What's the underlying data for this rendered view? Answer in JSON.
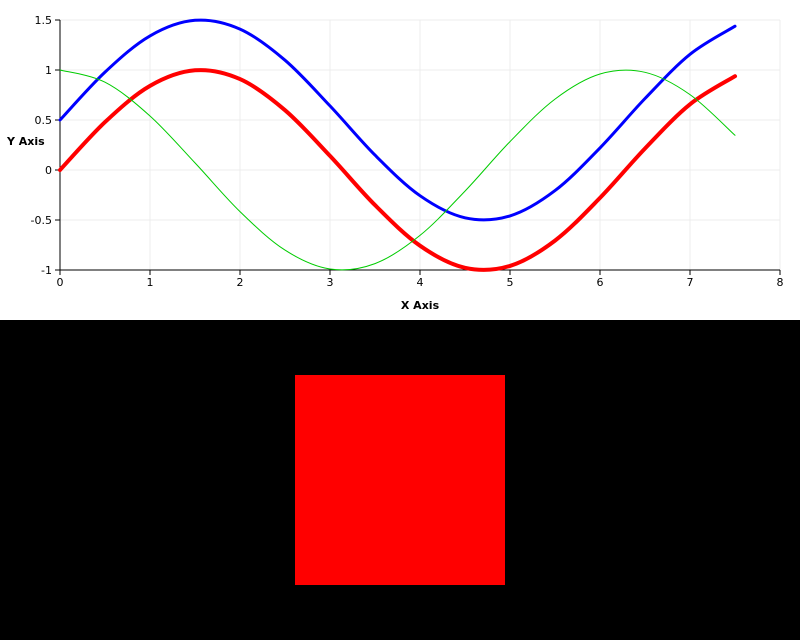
{
  "chart_data": {
    "type": "line",
    "title": "",
    "xlabel": "X Axis",
    "ylabel": "Y Axis",
    "xlim": [
      0,
      8
    ],
    "ylim": [
      -1,
      1.5
    ],
    "x_ticks": [
      0,
      1,
      2,
      3,
      4,
      5,
      6,
      7,
      8
    ],
    "y_ticks": [
      -1,
      -0.5,
      0,
      0.5,
      1,
      1.5
    ],
    "x_tick_labels": [
      "0",
      "1",
      "2",
      "3",
      "4",
      "5",
      "6",
      "7",
      "8"
    ],
    "y_tick_labels": [
      "-1",
      "-0.5",
      "0",
      "0.5",
      "1",
      "1.5"
    ],
    "grid": true,
    "legend": "none",
    "x": [
      0,
      0.5,
      1,
      1.5,
      2,
      2.5,
      3,
      3.5,
      4,
      4.5,
      5,
      5.5,
      6,
      6.5,
      7,
      7.5
    ],
    "series": [
      {
        "color": "#0000ff",
        "values": [
          0.5,
          0.979,
          1.341,
          1.497,
          1.409,
          1.098,
          0.641,
          0.149,
          -0.257,
          -0.478,
          -0.459,
          -0.206,
          0.221,
          0.715,
          1.157,
          1.438
        ]
      },
      {
        "color": "#ff0000",
        "values": [
          0,
          0.479,
          0.841,
          0.997,
          0.909,
          0.598,
          0.141,
          -0.351,
          -0.757,
          -0.978,
          -0.959,
          -0.706,
          -0.279,
          0.215,
          0.657,
          0.938
        ]
      },
      {
        "color": "#00cc00",
        "values": [
          1,
          0.878,
          0.54,
          0.071,
          -0.416,
          -0.801,
          -0.99,
          -0.936,
          -0.654,
          -0.211,
          0.284,
          0.709,
          0.96,
          0.977,
          0.754,
          0.347
        ]
      }
    ]
  },
  "render_view": {
    "background": "#000000",
    "square_color": "#ff0000"
  }
}
